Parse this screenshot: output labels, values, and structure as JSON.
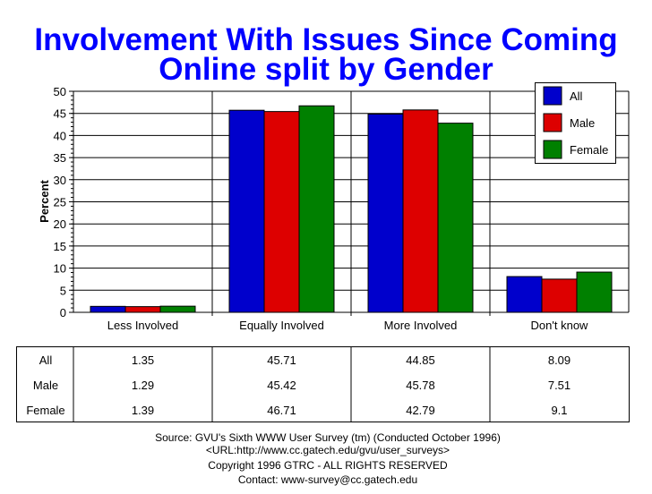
{
  "chart_data": {
    "type": "bar",
    "title": [
      "Involvement With Issues Since Coming",
      "Online split by Gender"
    ],
    "ylabel": "Percent",
    "xlabel": "",
    "ylim": [
      0,
      50
    ],
    "yticks": [
      0,
      5,
      10,
      15,
      20,
      25,
      30,
      35,
      40,
      45,
      50
    ],
    "grid": true,
    "legend_position": "top-right",
    "categories": [
      "Less Involved",
      "Equally Involved",
      "More Involved",
      "Don't know"
    ],
    "series": [
      {
        "name": "All",
        "color": "#0000cc",
        "values": [
          1.35,
          45.71,
          44.85,
          8.09
        ]
      },
      {
        "name": "Male",
        "color": "#dd0000",
        "values": [
          1.29,
          45.42,
          45.78,
          7.51
        ]
      },
      {
        "name": "Female",
        "color": "#008000",
        "values": [
          1.39,
          46.71,
          42.79,
          9.1
        ]
      }
    ],
    "table_labels": [
      [
        "1.35",
        "45.71",
        "44.85",
        "8.09"
      ],
      [
        "1.29",
        "45.42",
        "45.78",
        "7.51"
      ],
      [
        "1.39",
        "46.71",
        "42.79",
        "9.1"
      ]
    ]
  },
  "footer": [
    "Source: GVU's Sixth WWW User Survey (tm) (Conducted October 1996)",
    "<URL:http://www.cc.gatech.edu/gvu/user_surveys>",
    "Copyright 1996 GTRC - ALL RIGHTS RESERVED",
    "Contact: www-survey@cc.gatech.edu"
  ]
}
